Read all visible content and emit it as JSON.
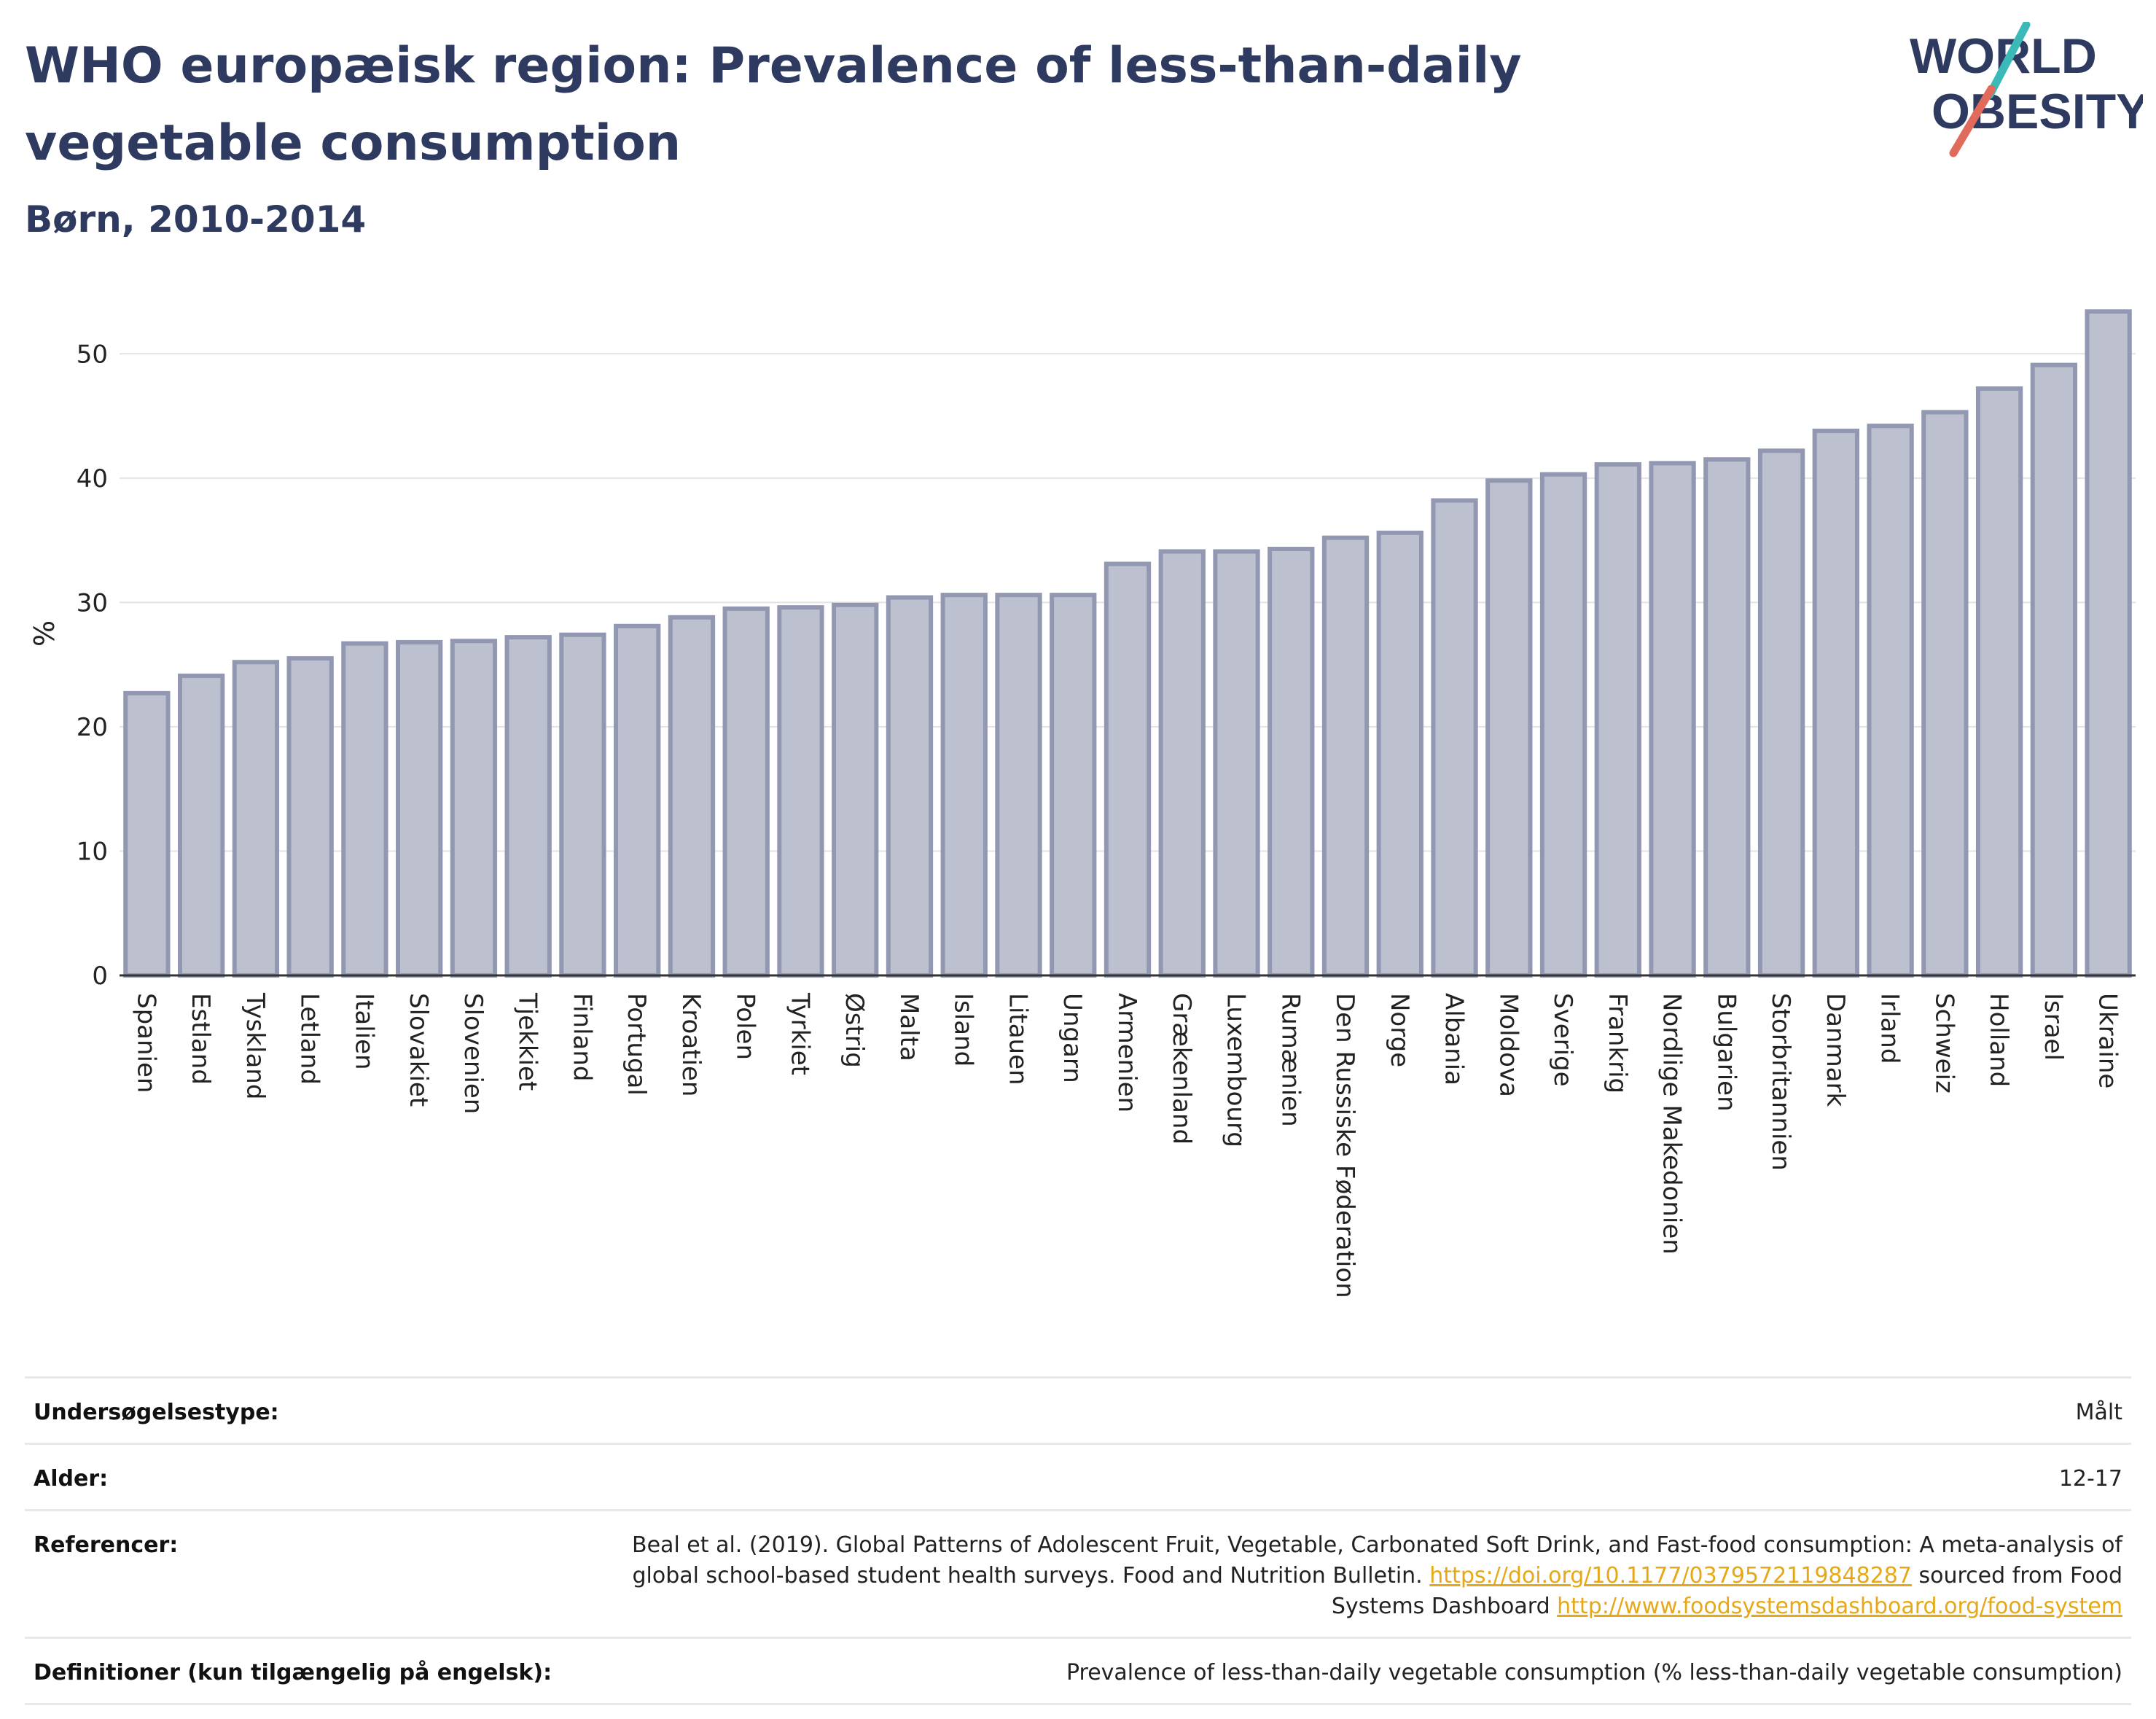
{
  "header": {
    "title": "WHO europæisk region: Prevalence of less-than-daily vegetable consumption",
    "subtitle": "Børn, 2010-2014",
    "logo": {
      "line1": "WORLD",
      "line2": "OBESITY",
      "accent_teal": "#3bb8b8",
      "accent_coral": "#e06b5a",
      "text_color": "#2e3a5f"
    }
  },
  "colors": {
    "bar_fill": "#bcc0cf",
    "bar_stroke": "#9298b2",
    "grid": "#e3e3e3",
    "axis": "#333333",
    "link": "#e6a817"
  },
  "chart_data": {
    "type": "bar",
    "categories": [
      "Spanien",
      "Estland",
      "Tyskland",
      "Letland",
      "Italien",
      "Slovakiet",
      "Slovenien",
      "Tjekkiet",
      "Finland",
      "Portugal",
      "Kroatien",
      "Polen",
      "Tyrkiet",
      "Østrig",
      "Malta",
      "Island",
      "Litauen",
      "Ungarn",
      "Armenien",
      "Grækenland",
      "Luxembourg",
      "Rumænien",
      "Den Russiske Føderation",
      "Norge",
      "Albania",
      "Moldova",
      "Sverige",
      "Frankrig",
      "Nordlige Makedonien",
      "Bulgarien",
      "Storbritannien",
      "Danmark",
      "Irland",
      "Schweiz",
      "Holland",
      "Israel",
      "Ukraine"
    ],
    "values": [
      22.7,
      24.1,
      25.2,
      25.5,
      26.7,
      26.8,
      26.9,
      27.2,
      27.4,
      28.1,
      28.8,
      29.5,
      29.6,
      29.8,
      30.4,
      30.6,
      30.6,
      30.6,
      33.1,
      34.1,
      34.1,
      34.3,
      35.2,
      35.6,
      38.2,
      39.8,
      40.3,
      41.1,
      41.2,
      41.5,
      42.2,
      43.8,
      44.2,
      45.3,
      47.2,
      49.1,
      53.4
    ],
    "ylabel": "%",
    "ylim": [
      0,
      55
    ],
    "yticks": [
      0,
      10,
      20,
      30,
      40,
      50
    ],
    "grid": true
  },
  "info": {
    "rows": [
      {
        "key": "Undersøgelsestype:",
        "value": "Målt"
      },
      {
        "key": "Alder:",
        "value": "12-17"
      },
      {
        "key": "Referencer:",
        "value": "Beal et al. (2019). Global Patterns of Adolescent Fruit, Vegetable, Carbonated Soft Drink, and Fast-food consumption: A meta-analysis of global school-based student health surveys. Food and Nutrition Bulletin.",
        "link1": "https://doi.org/10.1177/0379572119848287",
        "middle": "sourced from Food Systems Dashboard",
        "link2": "http://www.foodsystemsdashboard.org/food-system"
      },
      {
        "key": "Definitioner (kun tilgængelig på engelsk):",
        "value": "Prevalence of less-than-daily vegetable consumption (% less-than-daily vegetable consumption)"
      }
    ]
  }
}
